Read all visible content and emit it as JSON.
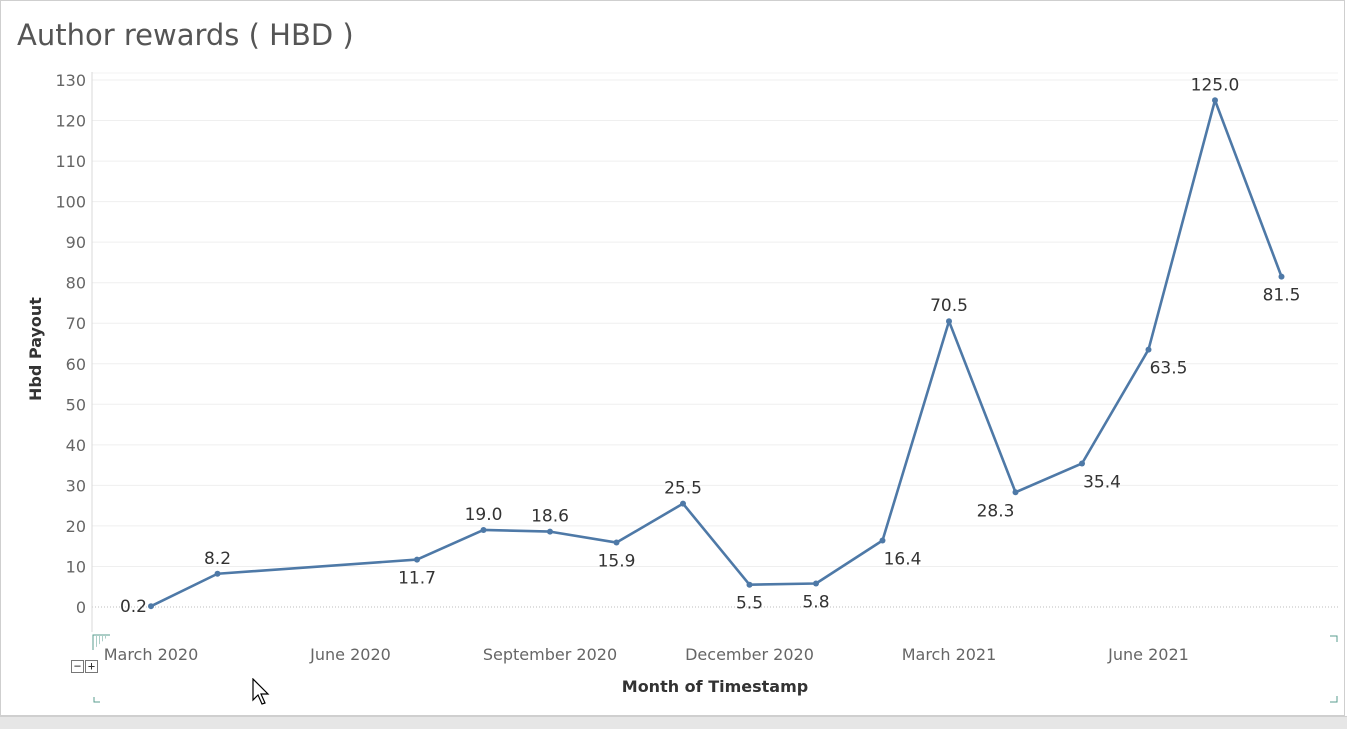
{
  "title": "Author rewards ( HBD )",
  "controls": {
    "zoom_out_label": "−",
    "zoom_in_label": "+"
  },
  "colors": {
    "line": "#4e79a7",
    "axis_text": "#666666",
    "label_text": "#333333",
    "grid": "#efefef"
  },
  "chart_data": {
    "type": "line",
    "title": "Author rewards ( HBD )",
    "xlabel": "Month of Timestamp",
    "ylabel": "Hbd Payout",
    "ylim": [
      0,
      130
    ],
    "yticks": [
      0,
      10,
      20,
      30,
      40,
      50,
      60,
      70,
      80,
      90,
      100,
      110,
      120,
      130
    ],
    "xticks": [
      {
        "label": "March 2020",
        "date": "2020-03-01"
      },
      {
        "label": "June 2020",
        "date": "2020-06-01"
      },
      {
        "label": "September 2020",
        "date": "2020-09-01"
      },
      {
        "label": "December 2020",
        "date": "2020-12-01"
      },
      {
        "label": "March 2021",
        "date": "2021-03-01"
      },
      {
        "label": "June 2021",
        "date": "2021-06-01"
      }
    ],
    "grid": true,
    "series": [
      {
        "points": [
          {
            "x": "2020-03-01",
            "y": 0.2,
            "label": "0.2",
            "pos": "left"
          },
          {
            "x": "2020-04-01",
            "y": 8.2,
            "label": "8.2",
            "pos": "above"
          },
          {
            "x": "2020-07-01",
            "y": 11.7,
            "label": "11.7",
            "pos": "below"
          },
          {
            "x": "2020-08-01",
            "y": 19.0,
            "label": "19.0",
            "pos": "above"
          },
          {
            "x": "2020-09-01",
            "y": 18.6,
            "label": "18.6",
            "pos": "above"
          },
          {
            "x": "2020-10-01",
            "y": 15.9,
            "label": "15.9",
            "pos": "below"
          },
          {
            "x": "2020-11-01",
            "y": 25.5,
            "label": "25.5",
            "pos": "above"
          },
          {
            "x": "2020-12-01",
            "y": 5.5,
            "label": "5.5",
            "pos": "below"
          },
          {
            "x": "2021-01-01",
            "y": 5.8,
            "label": "5.8",
            "pos": "below"
          },
          {
            "x": "2021-02-01",
            "y": 16.4,
            "label": "16.4",
            "pos": "below-right"
          },
          {
            "x": "2021-03-01",
            "y": 70.5,
            "label": "70.5",
            "pos": "above"
          },
          {
            "x": "2021-04-01",
            "y": 28.3,
            "label": "28.3",
            "pos": "below-left"
          },
          {
            "x": "2021-05-01",
            "y": 35.4,
            "label": "35.4",
            "pos": "below-right"
          },
          {
            "x": "2021-06-01",
            "y": 63.5,
            "label": "63.5",
            "pos": "below-right"
          },
          {
            "x": "2021-07-01",
            "y": 125.0,
            "label": "125.0",
            "pos": "above"
          },
          {
            "x": "2021-08-01",
            "y": 81.5,
            "label": "81.5",
            "pos": "below"
          }
        ]
      }
    ]
  }
}
